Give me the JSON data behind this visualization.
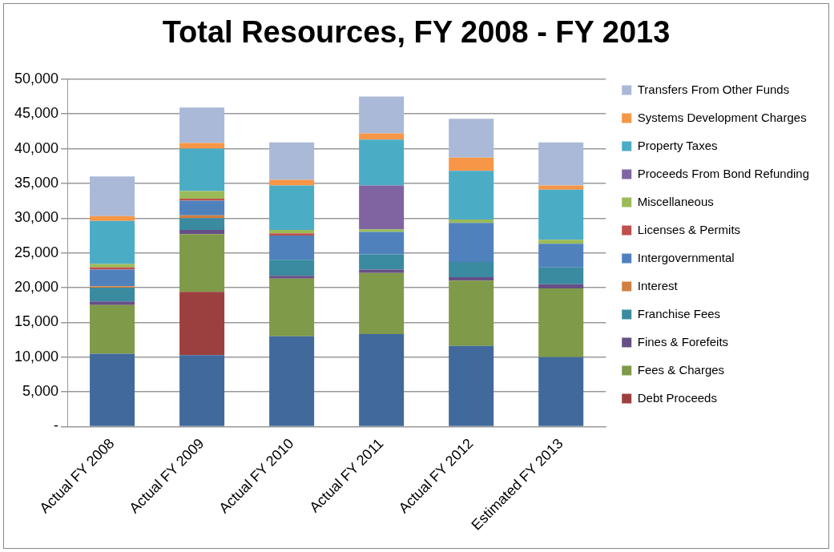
{
  "chart_data": {
    "type": "bar",
    "title": "Total Resources, FY 2008 - FY 2013",
    "stacked": true,
    "grid": "y",
    "legend": "right",
    "categories": [
      "Actual FY 2008",
      "Actual FY 2009",
      "Actual FY 2010",
      "Actual FY 2011",
      "Actual FY 2012",
      "Estimated FY 2013"
    ],
    "ylim": [
      0,
      50000
    ],
    "yticks": [
      {
        "value": 0,
        "label": "-"
      },
      {
        "value": 5000,
        "label": "5,000"
      },
      {
        "value": 10000,
        "label": "10,000"
      },
      {
        "value": 15000,
        "label": "15,000"
      },
      {
        "value": 20000,
        "label": "20,000"
      },
      {
        "value": 25000,
        "label": "25,000"
      },
      {
        "value": 30000,
        "label": "30,000"
      },
      {
        "value": 35000,
        "label": "35,000"
      },
      {
        "value": 40000,
        "label": "40,000"
      },
      {
        "value": 45000,
        "label": "45,000"
      },
      {
        "value": 50000,
        "label": "50,000"
      }
    ],
    "series": [
      {
        "color": "#41699c",
        "values": [
          10500,
          10300,
          13000,
          13300,
          11600,
          10000
        ]
      },
      {
        "name": "Debt Proceeds",
        "color": "#9c403f",
        "values": [
          0,
          9100,
          0,
          0,
          0,
          0
        ]
      },
      {
        "name": "Fees & Charges",
        "color": "#7f9a48",
        "values": [
          7000,
          8300,
          8300,
          8800,
          9400,
          9900
        ]
      },
      {
        "name": "Fines & Forefeits",
        "color": "#664f86",
        "values": [
          500,
          600,
          400,
          500,
          500,
          600
        ]
      },
      {
        "name": "Franchise Fees",
        "color": "#3a8aa0",
        "values": [
          2000,
          1700,
          2300,
          2200,
          2200,
          2400
        ]
      },
      {
        "name": "Interest",
        "color": "#d08040",
        "values": [
          200,
          400,
          0,
          0,
          0,
          0
        ]
      },
      {
        "name": "Intergovernmental",
        "color": "#4f81bd",
        "values": [
          2400,
          2100,
          3500,
          3200,
          5600,
          3400
        ]
      },
      {
        "name": "Licenses & Permits",
        "color": "#c0504d",
        "values": [
          300,
          300,
          300,
          0,
          0,
          0
        ]
      },
      {
        "name": "Miscellaneous",
        "color": "#9bbb59",
        "values": [
          500,
          1100,
          500,
          400,
          500,
          600
        ]
      },
      {
        "name": "Proceeds From Bond Refunding",
        "color": "#8064a2",
        "values": [
          0,
          0,
          0,
          6300,
          0,
          0
        ]
      },
      {
        "name": "Property Taxes",
        "color": "#4bacc6",
        "values": [
          6200,
          6100,
          6400,
          6600,
          7000,
          7200
        ]
      },
      {
        "name": "Systems Development Charges",
        "color": "#f79646",
        "values": [
          700,
          800,
          800,
          900,
          1900,
          600
        ]
      },
      {
        "name": "Transfers From Other Funds",
        "color": "#aab9d7",
        "values": [
          5700,
          5100,
          5400,
          5300,
          5600,
          6200
        ]
      }
    ]
  }
}
